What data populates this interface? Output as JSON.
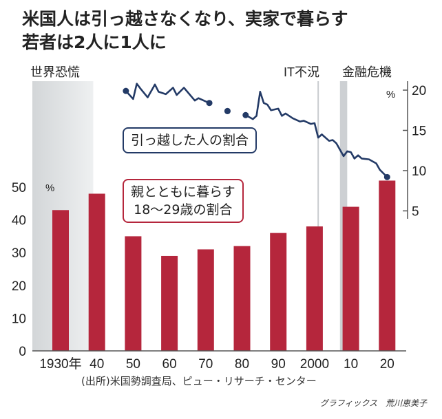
{
  "chart_data": {
    "type": "bar+line",
    "title": [
      "米国人は引っ越さなくなり、実家で暮らす",
      "若者は2人に1人に"
    ],
    "categories": [
      "1930年",
      "40",
      "50",
      "60",
      "70",
      "80",
      "90",
      "2000",
      "10",
      "20"
    ],
    "category_years": [
      1930,
      1940,
      1950,
      1960,
      1970,
      1980,
      1990,
      2000,
      2010,
      2020
    ],
    "bar_series": {
      "name": "親とともに暮らす18〜29歳の割合",
      "label_lines": [
        "親とともに暮らす",
        "18〜29歳の割合"
      ],
      "values": [
        43,
        48,
        35,
        29,
        31,
        32,
        36,
        38,
        44,
        52
      ],
      "color": "#b5263c",
      "axis": "left"
    },
    "line_series": {
      "name": "引っ越した人の割合",
      "color": "#233a66",
      "axis": "right",
      "segments": [
        [
          [
            1948,
            19.9
          ],
          [
            1950,
            18.9
          ],
          [
            1951,
            20.8
          ],
          [
            1952,
            20.2
          ],
          [
            1954,
            19.1
          ],
          [
            1956,
            20.7
          ],
          [
            1957,
            19.8
          ],
          [
            1959,
            19.5
          ],
          [
            1961,
            20.3
          ],
          [
            1962,
            19.4
          ],
          [
            1964,
            20.3
          ],
          [
            1967,
            18.7
          ],
          [
            1968,
            19.0
          ],
          [
            1970,
            18.6
          ],
          [
            1971,
            18.4
          ]
        ],
        [
          [
            1976,
            17.4
          ]
        ],
        [
          [
            1981,
            16.9
          ],
          [
            1983,
            16.4
          ],
          [
            1984,
            16.8
          ],
          [
            1985,
            19.8
          ],
          [
            1986,
            18.4
          ],
          [
            1987,
            18.2
          ],
          [
            1988,
            17.5
          ],
          [
            1990,
            17.7
          ],
          [
            1991,
            16.8
          ],
          [
            1992,
            17.1
          ],
          [
            1994,
            16.5
          ],
          [
            1996,
            16.1
          ],
          [
            1997,
            16.2
          ],
          [
            1999,
            15.8
          ],
          [
            2000,
            15.9
          ],
          [
            2001,
            14.1
          ],
          [
            2002,
            14.5
          ],
          [
            2004,
            13.7
          ],
          [
            2005,
            13.8
          ],
          [
            2006,
            13.4
          ],
          [
            2008,
            11.8
          ],
          [
            2009,
            12.4
          ],
          [
            2010,
            12.3
          ],
          [
            2011,
            11.5
          ],
          [
            2012,
            11.9
          ],
          [
            2013,
            11.5
          ],
          [
            2015,
            11.4
          ],
          [
            2017,
            10.9
          ],
          [
            2018,
            10.1
          ],
          [
            2020,
            9.2
          ]
        ]
      ]
    },
    "left_axis": {
      "ticks": [
        0,
        10,
        20,
        30,
        40,
        50
      ],
      "unit": "%",
      "range": [
        0,
        50
      ]
    },
    "right_axis": {
      "ticks": [
        5,
        10,
        15,
        20
      ],
      "unit": "%",
      "range": [
        5,
        20
      ]
    },
    "events": [
      {
        "label": "世界恐慌",
        "type": "band",
        "from": 1921,
        "to": 1939
      },
      {
        "label": "IT不況",
        "type": "line",
        "at": 2001
      },
      {
        "label": "金融危機",
        "type": "band",
        "from": 2007,
        "to": 2009
      }
    ]
  },
  "source": "(出所)米国勢調査局、ピュー・リサーチ・センター",
  "credit": "グラフィックス　荒川恵美子"
}
